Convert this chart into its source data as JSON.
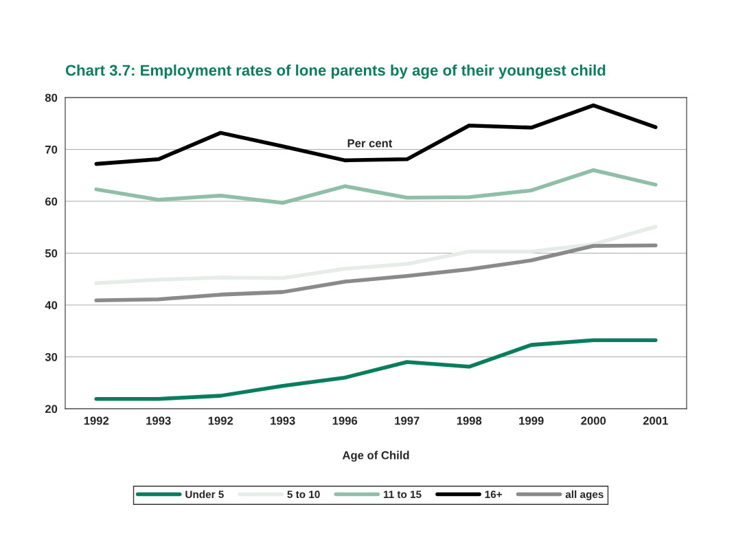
{
  "chart_data": {
    "type": "line",
    "title": "Chart 3.7: Employment rates of lone parents by age of their youngest child",
    "xlabel": "Age of Child",
    "annotations": [
      "Per cent"
    ],
    "categories": [
      "1992",
      "1993",
      "1992",
      "1993",
      "1996",
      "1997",
      "1998",
      "1999",
      "2000",
      "2001"
    ],
    "series": [
      {
        "name": "Under 5",
        "color": "#0a7d5f",
        "values": [
          21.9,
          21.9,
          22.5,
          24.4,
          26.0,
          29.0,
          28.1,
          32.3,
          33.2,
          33.2
        ]
      },
      {
        "name": "5 to 10",
        "color": "#e6ece8",
        "values": [
          44.2,
          44.9,
          45.3,
          45.2,
          47.0,
          47.9,
          50.3,
          50.3,
          51.7,
          55.1
        ]
      },
      {
        "name": "11 to 15",
        "color": "#8fbfa8",
        "values": [
          62.3,
          60.3,
          61.1,
          59.7,
          62.9,
          60.7,
          60.8,
          62.1,
          66.0,
          63.2
        ]
      },
      {
        "name": "16+",
        "color": "#000000",
        "values": [
          67.2,
          68.1,
          73.2,
          70.6,
          67.9,
          68.1,
          74.6,
          74.2,
          78.5,
          74.3
        ]
      },
      {
        "name": "all ages",
        "color": "#8a8a8a",
        "values": [
          40.9,
          41.1,
          42.0,
          42.5,
          44.5,
          45.6,
          46.9,
          48.6,
          51.4,
          51.5
        ]
      }
    ],
    "ylim": [
      20,
      80
    ],
    "yticks": [
      20,
      30,
      40,
      50,
      60,
      70,
      80
    ],
    "grid": "y",
    "legend": "bottom",
    "marker": "none",
    "line_style": "solid"
  }
}
